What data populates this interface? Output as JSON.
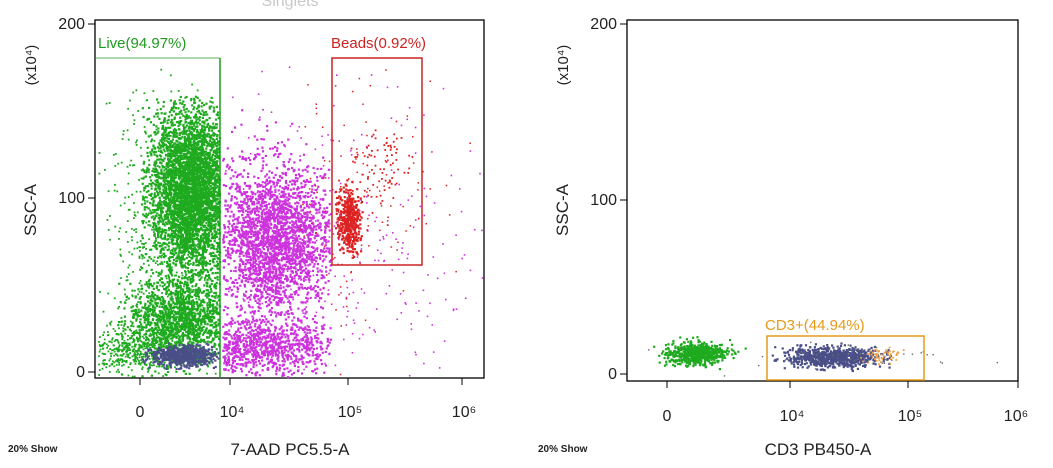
{
  "chart_data": [
    {
      "type": "scatter",
      "title": "Singlets",
      "xlabel": "7-AAD PC5.5-A",
      "ylabel": "SSC-A",
      "y_multiplier_label": "(x10⁴)",
      "x_scale": "biexponential",
      "x_ticks": [
        "0",
        "10⁴",
        "10⁵",
        "10⁶"
      ],
      "y_ticks": [
        "0",
        "100",
        "200"
      ],
      "ylim": [
        0,
        200
      ],
      "footer": "20% Show",
      "gates": [
        {
          "name": "Live",
          "label": "Live(94.97%)",
          "percent": 94.97,
          "color": "#1f9a1f",
          "x_max": 10000,
          "y_range": [
            0,
            200
          ]
        },
        {
          "name": "Beads",
          "label": "Beads(0.92%)",
          "percent": 0.92,
          "color": "#cc2222",
          "x_range": [
            70000,
            450000
          ],
          "y_range": [
            60,
            175
          ]
        }
      ],
      "populations": [
        {
          "name": "live-cells",
          "color": "#1faa1f",
          "x_center": 3500,
          "y_center": 95
        },
        {
          "name": "dead-cells",
          "color": "#cc33dd",
          "x_center": 20000,
          "y_center": 75
        },
        {
          "name": "beads",
          "color": "#dd2222",
          "x_center": 100000,
          "y_center": 88
        },
        {
          "name": "debris",
          "color": "#4a4f88",
          "x_center": 3000,
          "y_center": 9
        }
      ]
    },
    {
      "type": "scatter",
      "title": "",
      "xlabel": "CD3 PB450-A",
      "ylabel": "SSC-A",
      "y_multiplier_label": "(x10⁴)",
      "x_scale": "biexponential",
      "x_ticks": [
        "0",
        "10⁴",
        "10⁵",
        "10⁶"
      ],
      "y_ticks": [
        "0",
        "100",
        "200"
      ],
      "ylim": [
        0,
        200
      ],
      "footer": "20% Show",
      "gates": [
        {
          "name": "CD3+",
          "label": "CD3+(44.94%)",
          "percent": 44.94,
          "color": "#e69a1a",
          "x_range": [
            7000,
            170000
          ],
          "y_range": [
            -5,
            20
          ]
        }
      ],
      "populations": [
        {
          "name": "cd3-negative",
          "color": "#1faa1f",
          "x_center": 1800,
          "y_center": 10
        },
        {
          "name": "cd3-positive",
          "color": "#4a4f88",
          "x_center": 28000,
          "y_center": 9
        }
      ]
    }
  ]
}
